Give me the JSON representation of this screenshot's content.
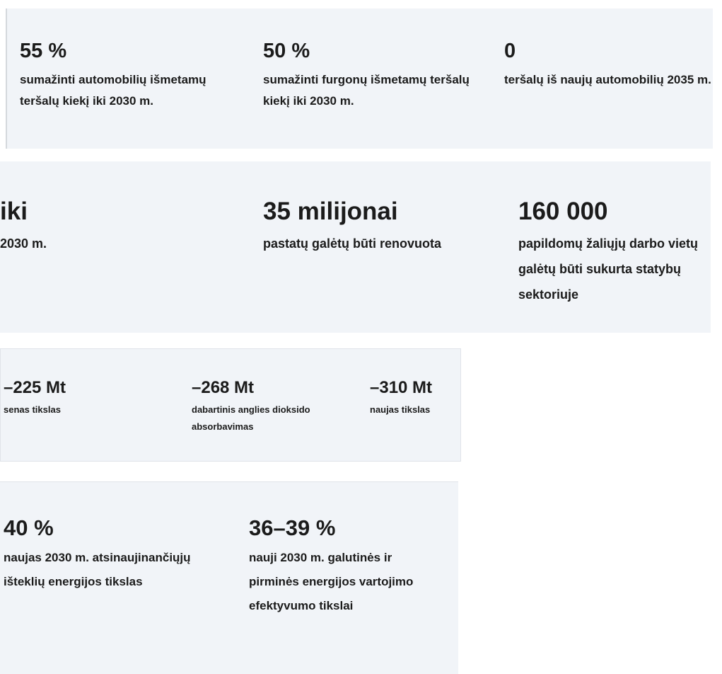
{
  "panels": [
    {
      "items": [
        {
          "value": "55 %",
          "text": "sumažinti automobilių išmetamų teršalų kiekį iki 2030 m."
        },
        {
          "value": "50 %",
          "text": "sumažinti furgonų išmetamų teršalų kiekį iki 2030 m."
        },
        {
          "value": "0",
          "text": "teršalų iš naujų automobilių 2035 m."
        }
      ]
    },
    {
      "items": [
        {
          "value": "iki",
          "text": "2030 m."
        },
        {
          "value": "35 milijonai",
          "text": "pastatų galėtų būti renovuota"
        },
        {
          "value": "160 000",
          "text": "papildomų žaliųjų darbo vietų galėtų būti sukurta statybų sektoriuje"
        }
      ]
    },
    {
      "items": [
        {
          "value": "–225 Mt",
          "text": "senas tikslas"
        },
        {
          "value": "–268 Mt",
          "text": "dabartinis anglies dioksido absorbavimas"
        },
        {
          "value": "–310 Mt",
          "text": "naujas tikslas"
        }
      ]
    },
    {
      "items": [
        {
          "value": "40 %",
          "text": "naujas 2030 m. atsinaujinančiųjų išteklių energijos tikslas"
        },
        {
          "value": "36–39 %",
          "text": "nauji 2030 m. galutinės ir pirminės energijos vartojimo efektyvumo tikslai"
        }
      ]
    }
  ]
}
